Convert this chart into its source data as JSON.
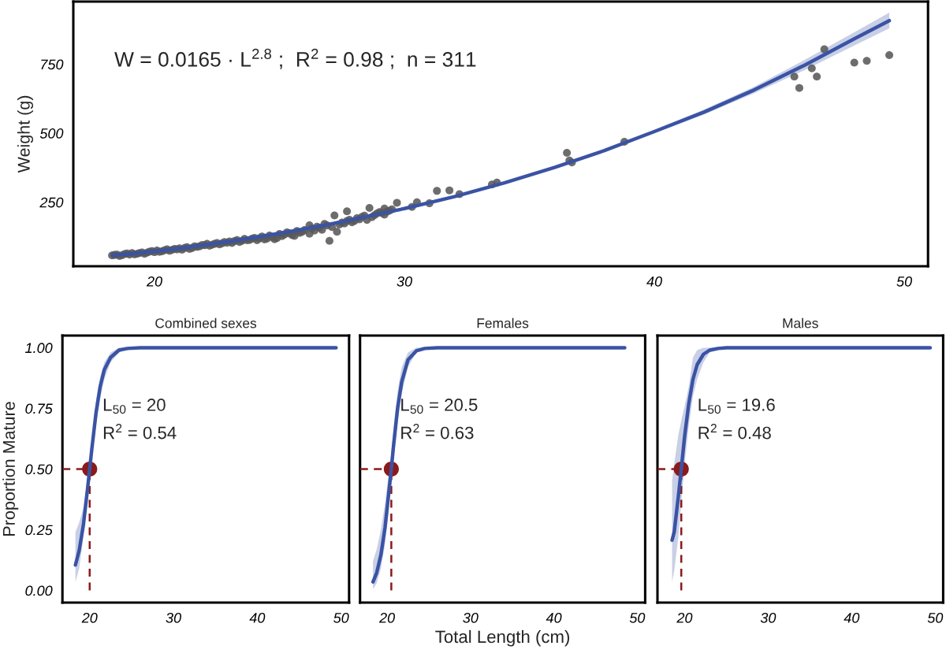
{
  "chart_data": [
    {
      "type": "scatter",
      "ylabel": "Weight (g)",
      "annotations": [
        "W = 0.0165 · L$^{2.8}$ ;  R$^{2}$ = 0.98 ;  n = 311"
      ],
      "xlim": [
        16.75,
        50.95
      ],
      "xticks": [
        20,
        30,
        40,
        50
      ],
      "ylim": [
        18,
        977
      ],
      "yticks": [
        250,
        500,
        750
      ],
      "grid": false,
      "series": [
        {
          "color": "#595959",
          "marker": "circle",
          "x": [
            18.3,
            18.5,
            18.6,
            18.8,
            19.0,
            19.1,
            19.3,
            19.5,
            19.6,
            19.8,
            20.0,
            20.1,
            20.3,
            20.5,
            20.6,
            20.8,
            21.0,
            21.1,
            21.3,
            21.5,
            21.6,
            21.8,
            22.0,
            22.1,
            22.3,
            22.5,
            22.6,
            22.8,
            23.0,
            23.1,
            23.3,
            23.5,
            23.6,
            23.8,
            24.0,
            24.1,
            24.3,
            24.5,
            24.6,
            24.8,
            25.0,
            25.1,
            25.3,
            25.5,
            25.7,
            26.0,
            26.2,
            26.2,
            26.3,
            26.5,
            26.7,
            26.9,
            27.0,
            27.1,
            27.2,
            27.3,
            27.5,
            27.7,
            27.7,
            27.9,
            28.1,
            28.3,
            28.5,
            28.6,
            28.8,
            29.0,
            29.2,
            29.2,
            29.4,
            29.7,
            30.3,
            30.5,
            31.0,
            31.3,
            31.8,
            32.2,
            33.5,
            33.7,
            36.5,
            36.6,
            36.7,
            38.8,
            45.6,
            45.8,
            46.3,
            46.5,
            46.8,
            48.0,
            48.5,
            49.4,
            18.4,
            18.7,
            18.9,
            19.2,
            19.4,
            19.7,
            19.9,
            20.2,
            20.4,
            20.7,
            20.9,
            21.2,
            21.4,
            21.7,
            21.9,
            22.2,
            22.4,
            22.7,
            22.9,
            23.2,
            23.4,
            23.7,
            23.9,
            24.2,
            24.4,
            24.7,
            24.9,
            25.2,
            25.4,
            25.6,
            25.8,
            25.9,
            26.4,
            26.6,
            26.8,
            27.4,
            27.6,
            27.8,
            28.0,
            28.2,
            28.4,
            28.7,
            28.9,
            29.1,
            29.3,
            29.5
          ],
          "values": [
            57,
            60,
            55,
            62,
            60,
            66,
            63,
            68,
            63,
            71,
            69,
            75,
            72,
            79,
            74,
            81,
            83,
            78,
            87,
            84,
            90,
            90,
            94,
            99,
            96,
            102,
            97,
            106,
            108,
            102,
            113,
            110,
            117,
            113,
            121,
            112,
            126,
            118,
            129,
            116,
            135,
            127,
            141,
            131,
            146,
            149,
            136,
            166,
            155,
            161,
            150,
            166,
            110,
            160,
            202,
            143,
            176,
            217,
            182,
            177,
            192,
            197,
            186,
            229,
            203,
            214,
            205,
            227,
            219,
            248,
            233,
            250,
            246,
            291,
            293,
            279,
            314,
            321,
            429,
            401,
            394,
            469,
            705,
            664,
            735,
            705,
            804,
            756,
            762,
            783,
            59,
            58,
            64,
            61,
            66,
            67,
            73,
            70,
            76,
            77,
            79,
            84,
            81,
            88,
            95,
            92,
            99,
            101,
            103,
            109,
            106,
            112,
            118,
            119,
            115,
            124,
            120,
            133,
            137,
            128,
            139,
            142,
            147,
            158,
            171,
            169,
            173,
            186,
            182,
            188,
            201,
            196,
            209,
            211,
            216,
            224
          ]
        },
        {
          "type": "line",
          "color": "#3a53a4",
          "marker": "none",
          "line_style": "solid",
          "x": [
            18.3,
            19,
            20,
            21,
            22,
            23,
            24,
            25,
            26,
            27,
            28,
            29,
            30,
            32,
            34,
            36,
            38,
            40,
            42,
            44,
            46,
            48,
            49.4
          ],
          "values": [
            57,
            63,
            72,
            83,
            95,
            108,
            122,
            137,
            153,
            170,
            189,
            208,
            227,
            270,
            320,
            376,
            437,
            506,
            577,
            657,
            746,
            842,
            908
          ],
          "lower": [
            54,
            61,
            70,
            81,
            93,
            106,
            120,
            135,
            151,
            168,
            187,
            206,
            225,
            267,
            317,
            372,
            432,
            500,
            568,
            645,
            728,
            818,
            880
          ],
          "upper": [
            60,
            65,
            74,
            85,
            97,
            110,
            124,
            139,
            155,
            172,
            191,
            210,
            229,
            273,
            323,
            380,
            442,
            512,
            586,
            669,
            765,
            866,
            937
          ]
        }
      ]
    },
    {
      "type": "line",
      "title": "Combined sexes",
      "ylabel": "Proportion Mature",
      "annotations": [
        "L$_{50}$ = 20",
        "R$^{2}$ = 0.54"
      ],
      "xlim": [
        16.75,
        50.95
      ],
      "xticks": [
        20,
        30,
        40,
        50
      ],
      "ylim": [
        -0.05,
        1.05
      ],
      "yticks": [
        {
          "value": 0,
          "label": "0.00"
        },
        0.25,
        {
          "value": 0.5,
          "label": "0.50"
        },
        0.75,
        {
          "value": 1,
          "label": "1.00"
        }
      ],
      "grid": false,
      "ref_lines": [
        {
          "axis": "x",
          "value": 20,
          "color": "#8b1a1a",
          "line_style": "dashed"
        },
        {
          "axis": "y",
          "value": 0.5,
          "color": "#8b1a1a",
          "line_style": "dashed"
        }
      ],
      "series": [
        {
          "color": "#3a53a4",
          "marker": "none",
          "line_style": "solid",
          "x": [
            18.3,
            18.75,
            19.25,
            19.75,
            20,
            20.25,
            20.75,
            21.25,
            21.75,
            22.5,
            23.5,
            24.5,
            26,
            28,
            32,
            40,
            49.4
          ],
          "values": [
            0.105,
            0.165,
            0.27,
            0.42,
            0.5,
            0.58,
            0.73,
            0.84,
            0.91,
            0.96,
            0.99,
            0.997,
            1,
            1,
            1,
            1,
            1
          ],
          "lower": [
            0.035,
            0.09,
            0.22,
            0.38,
            0.47,
            0.55,
            0.68,
            0.79,
            0.87,
            0.94,
            0.98,
            0.995,
            1,
            1,
            1,
            1,
            1
          ],
          "upper": [
            0.24,
            0.28,
            0.34,
            0.46,
            0.53,
            0.62,
            0.78,
            0.88,
            0.94,
            0.98,
            1,
            1,
            1,
            1,
            1,
            1,
            1
          ]
        },
        {
          "type": "scatter",
          "color": "#8b1a1a",
          "marker": "circle",
          "x": [
            20
          ],
          "values": [
            0.5
          ]
        }
      ]
    },
    {
      "type": "line",
      "title": "Females",
      "xlabel": "Total Length (cm)",
      "annotations": [
        "L$_{50}$ = 20.5",
        "R$^{2}$ = 0.63"
      ],
      "xlim": [
        16.75,
        50.95
      ],
      "xticks": [
        20,
        30,
        40,
        50
      ],
      "ylim": [
        -0.05,
        1.05
      ],
      "tick_labels": "x",
      "grid": false,
      "ref_lines": [
        {
          "axis": "x",
          "value": 20.5,
          "color": "#8b1a1a",
          "line_style": "dashed"
        },
        {
          "axis": "y",
          "value": 0.5,
          "color": "#8b1a1a",
          "line_style": "dashed"
        }
      ],
      "series": [
        {
          "color": "#3a53a4",
          "marker": "none",
          "line_style": "solid",
          "x": [
            18.3,
            18.75,
            19.25,
            19.75,
            20.25,
            20.5,
            20.75,
            21.25,
            21.75,
            22.5,
            23.5,
            24.5,
            26,
            30,
            40,
            48.5
          ],
          "values": [
            0.035,
            0.073,
            0.146,
            0.26,
            0.42,
            0.5,
            0.59,
            0.75,
            0.86,
            0.95,
            0.987,
            0.997,
            1,
            1,
            1,
            1
          ],
          "lower": [
            0.005,
            0.03,
            0.09,
            0.19,
            0.35,
            0.44,
            0.53,
            0.69,
            0.81,
            0.92,
            0.98,
            0.995,
            1,
            1,
            1,
            1
          ],
          "upper": [
            0.12,
            0.17,
            0.25,
            0.36,
            0.5,
            0.57,
            0.66,
            0.82,
            0.92,
            0.98,
            1,
            1,
            1,
            1,
            1,
            1
          ]
        },
        {
          "type": "scatter",
          "color": "#8b1a1a",
          "marker": "circle",
          "x": [
            20.5
          ],
          "values": [
            0.5
          ]
        }
      ]
    },
    {
      "type": "line",
      "title": "Males",
      "annotations": [
        "L$_{50}$ = 19.6",
        "R$^{2}$ = 0.48"
      ],
      "xlim": [
        16.75,
        50.95
      ],
      "xticks": [
        20,
        30,
        40,
        50
      ],
      "ylim": [
        -0.05,
        1.05
      ],
      "tick_labels": "x",
      "grid": false,
      "ref_lines": [
        {
          "axis": "x",
          "value": 19.6,
          "color": "#8b1a1a",
          "line_style": "dashed"
        },
        {
          "axis": "y",
          "value": 0.5,
          "color": "#8b1a1a",
          "line_style": "dashed"
        }
      ],
      "series": [
        {
          "color": "#3a53a4",
          "marker": "none",
          "line_style": "solid",
          "x": [
            18.5,
            18.75,
            19.25,
            19.6,
            20,
            20.5,
            21,
            21.5,
            22.25,
            23,
            24,
            25,
            26.5,
            30,
            40,
            49.4
          ],
          "values": [
            0.207,
            0.24,
            0.387,
            0.5,
            0.635,
            0.77,
            0.87,
            0.93,
            0.973,
            0.99,
            0.997,
            1,
            1,
            1,
            1,
            1
          ],
          "lower": [
            0.035,
            0.08,
            0.22,
            0.36,
            0.52,
            0.68,
            0.8,
            0.87,
            0.94,
            0.98,
            0.99,
            1,
            1,
            1,
            1,
            1
          ],
          "upper": [
            0.45,
            0.52,
            0.64,
            0.7,
            0.76,
            0.84,
            0.96,
            0.99,
            1,
            1,
            1,
            1,
            1,
            1,
            1,
            1
          ]
        },
        {
          "type": "scatter",
          "color": "#8b1a1a",
          "marker": "circle",
          "x": [
            19.6
          ],
          "values": [
            0.5
          ]
        }
      ]
    }
  ]
}
